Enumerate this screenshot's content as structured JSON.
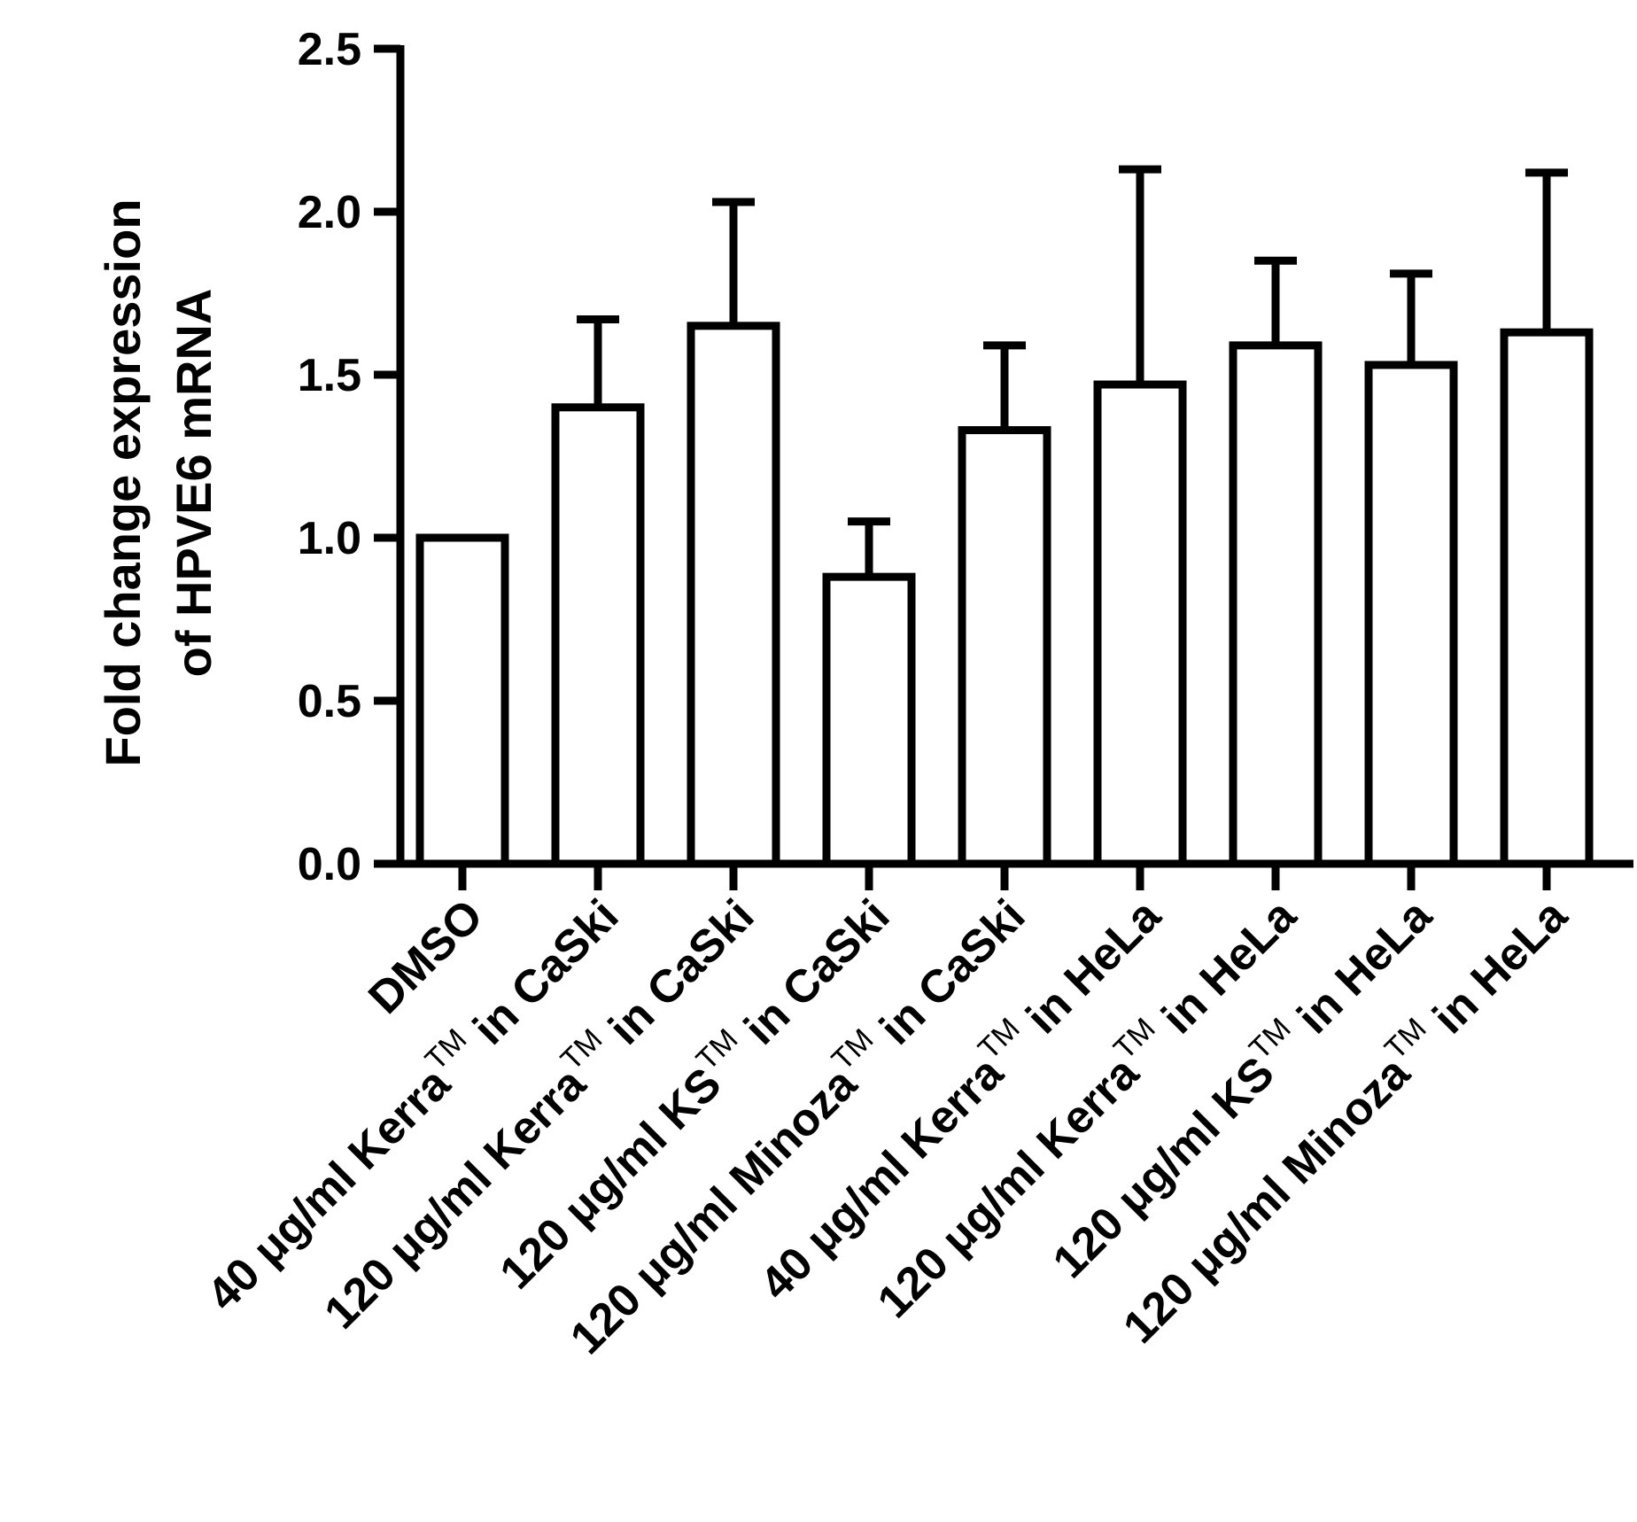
{
  "chart_data": {
    "type": "bar",
    "title": "",
    "xlabel": "",
    "ylabel_lines": [
      "Fold change expression",
      "of HPVE6 mRNA"
    ],
    "ylim": [
      0,
      2.5
    ],
    "yticks": [
      0.0,
      0.5,
      1.0,
      1.5,
      2.0,
      2.5
    ],
    "ytick_labels": [
      "0.0",
      "0.5",
      "1.0",
      "1.5",
      "2.0",
      "2.5"
    ],
    "grid": false,
    "bar_fill": "#ffffff",
    "bar_stroke": "#000000",
    "categories": [
      {
        "main": "DMSO",
        "tm": "",
        "tail": ""
      },
      {
        "main": "40 μg/ml Kerra",
        "tm": "TM",
        "tail": " in CaSki"
      },
      {
        "main": "120 μg/ml Kerra",
        "tm": "TM",
        "tail": " in CaSki"
      },
      {
        "main": "120 μg/ml KS",
        "tm": "TM",
        "tail": " in CaSki"
      },
      {
        "main": "120 μg/ml Minoza",
        "tm": "TM",
        "tail": " in CaSki"
      },
      {
        "main": "40 μg/ml Kerra",
        "tm": "TM",
        "tail": " in HeLa"
      },
      {
        "main": "120 μg/ml Kerra",
        "tm": "TM",
        "tail": " in HeLa"
      },
      {
        "main": "120 μg/ml KS",
        "tm": "TM",
        "tail": " in HeLa"
      },
      {
        "main": "120 μg/ml Minoza",
        "tm": "TM",
        "tail": " in HeLa"
      }
    ],
    "values": [
      1.0,
      1.4,
      1.65,
      0.88,
      1.33,
      1.47,
      1.59,
      1.53,
      1.63
    ],
    "error_upper": [
      0.0,
      0.27,
      0.38,
      0.17,
      0.26,
      0.66,
      0.26,
      0.28,
      0.49
    ]
  }
}
